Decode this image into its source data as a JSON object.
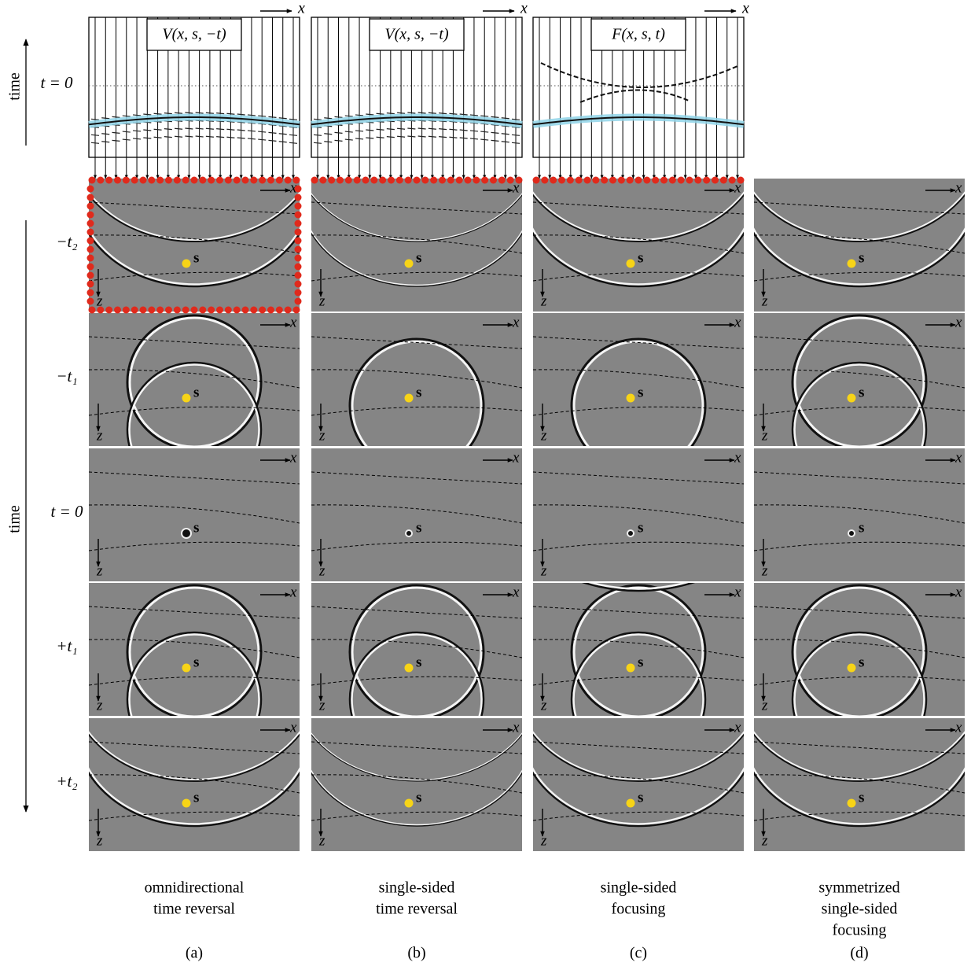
{
  "top_panel": {
    "time_label": "time",
    "t0_label": "t = 0",
    "axis_x": "x",
    "columns": [
      {
        "label": "V(x, s, −t)"
      },
      {
        "label": "V(x, s, −t)"
      },
      {
        "label": "F(x, s, t)"
      }
    ]
  },
  "snapshots": {
    "time_label": "time",
    "axis_x": "x",
    "axis_z": "z",
    "source": "s",
    "rows": [
      "−t₂",
      "−t₁",
      "t = 0",
      "+t₁",
      "+t₂"
    ]
  },
  "columns": [
    {
      "caption": [
        "omnidirectional",
        "time reversal"
      ],
      "letter": "(a)"
    },
    {
      "caption": [
        "single-sided",
        "time reversal"
      ],
      "letter": "(b)"
    },
    {
      "caption": [
        "single-sided",
        "focusing"
      ],
      "letter": "(c)"
    },
    {
      "caption": [
        "symmetrized",
        "single-sided",
        "focusing"
      ],
      "letter": "(d)"
    }
  ]
}
